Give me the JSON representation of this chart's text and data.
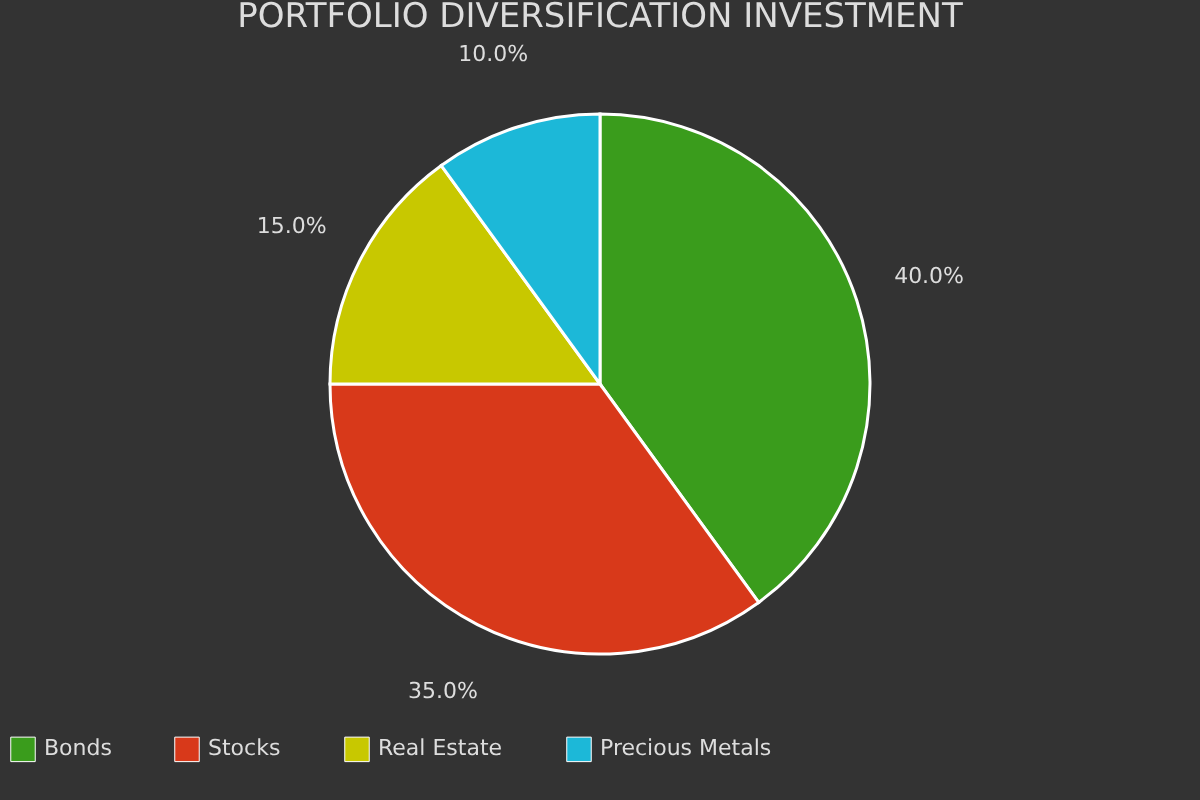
{
  "chart_data": {
    "type": "pie",
    "title": "PORTFOLIO DIVERSIFICATION INVESTMENT",
    "categories": [
      "Bonds",
      "Stocks",
      "Real Estate",
      "Precious Metals"
    ],
    "values": [
      40,
      35,
      15,
      10
    ],
    "colors": [
      "#3a9c1c",
      "#d8391a",
      "#c8c800",
      "#1cb8d8"
    ],
    "value_labels": [
      "40.0%",
      "35.0%",
      "15.0%",
      "10.0%"
    ],
    "legend": "bottom"
  }
}
